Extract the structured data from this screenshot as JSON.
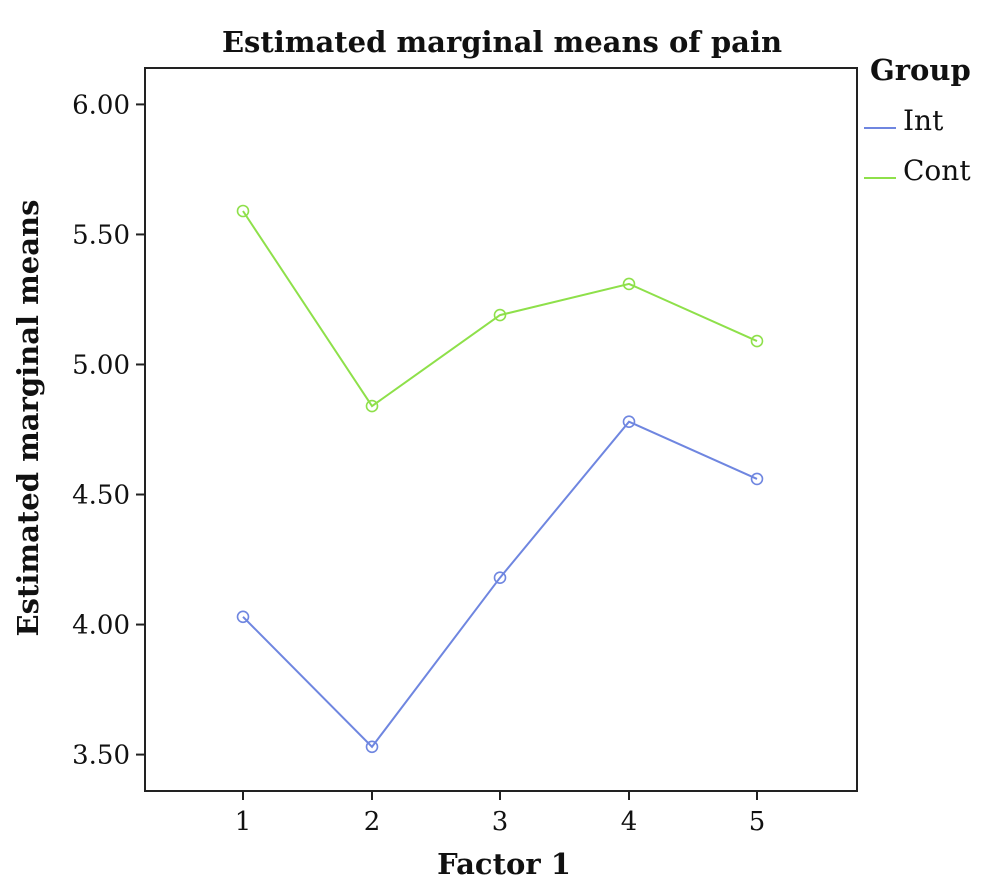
{
  "chart_data": {
    "type": "line",
    "title": "Estimated marginal means of pain",
    "xlabel": "Factor 1",
    "ylabel": "Estimated marginal means",
    "categories": [
      "1",
      "2",
      "3",
      "4",
      "5"
    ],
    "yticks": [
      "3.50",
      "4.00",
      "4.50",
      "5.00",
      "5.50",
      "6.00"
    ],
    "ylim": [
      3.36,
      6.14
    ],
    "grid": false,
    "markers": "open-circle",
    "legend": {
      "title": "Group",
      "placement": "right"
    },
    "series": [
      {
        "name": "Int",
        "color": "#6f86e0",
        "values": [
          4.03,
          3.53,
          4.18,
          4.78,
          4.56
        ]
      },
      {
        "name": "Cont",
        "color": "#8ee04a",
        "values": [
          5.59,
          4.84,
          5.19,
          5.31,
          5.09
        ]
      }
    ]
  }
}
